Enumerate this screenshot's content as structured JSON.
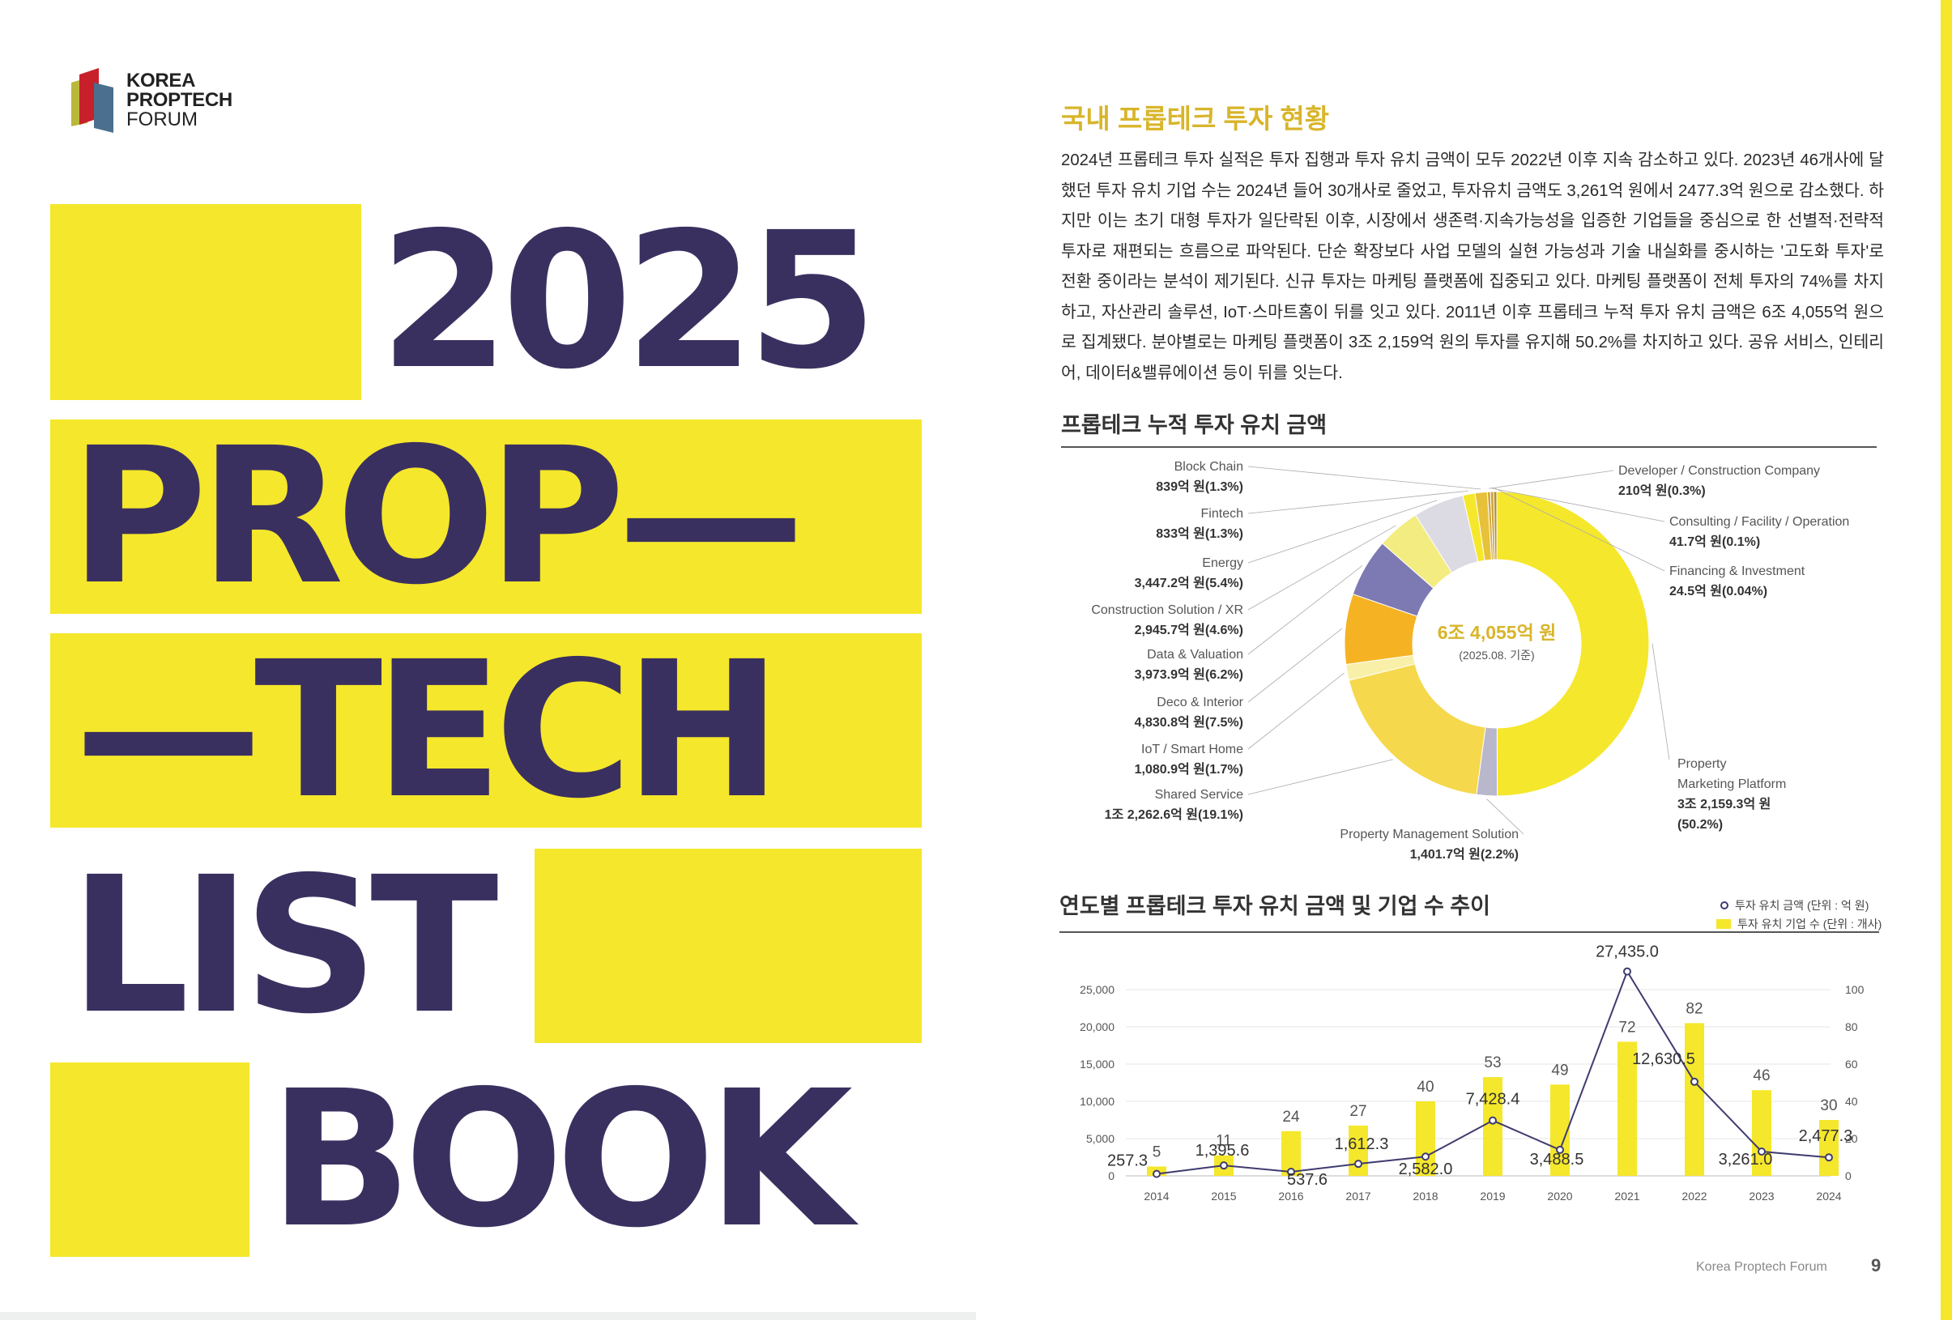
{
  "logo": {
    "line1": "KOREA",
    "line2": "PROPTECH",
    "line3": "FORUM"
  },
  "cover": {
    "word1": "2025",
    "word2": "PROP—",
    "word3": "—TECH",
    "word4": "LIST",
    "word5": "BOOK"
  },
  "colors": {
    "yellow": "#f5e72b",
    "navy": "#3a3060",
    "gold": "#d8b52a",
    "purple": "#7c79b3",
    "orange": "#f5b324",
    "grey": "#dcdae3"
  },
  "section": {
    "title": "국내 프롭테크 투자 현황",
    "body": "2024년 프롭테크 투자 실적은 투자 집행과 투자 유치 금액이 모두 2022년 이후 지속 감소하고 있다. 2023년 46개사에 달했던 투자 유치 기업 수는 2024년 들어 30개사로 줄었고, 투자유치 금액도 3,261억 원에서 2477.3억 원으로 감소했다. 하지만 이는 초기 대형 투자가 일단락된 이후, 시장에서 생존력·지속가능성을 입증한 기업들을 중심으로 한 선별적·전략적 투자로 재편되는 흐름으로 파악된다. 단순 확장보다 사업 모델의 실현 가능성과 기술 내실화를 중시하는 '고도화 투자'로 전환 중이라는 분석이 제기된다. 신규 투자는 마케팅 플랫폼에 집중되고 있다. 마케팅 플랫폼이 전체 투자의 74%를 차지하고, 자산관리 솔루션, IoT·스마트홈이 뒤를 잇고 있다. 2011년 이후 프롭테크 누적 투자 유치 금액은 6조 4,055억 원으로 집계됐다. 분야별로는 마케팅 플랫폼이 3조 2,159억 원의 투자를 유지해 50.2%를 차지하고 있다. 공유 서비스, 인테리어, 데이터&밸류에이션 등이 뒤를 잇는다."
  },
  "donut_title": "프롭테크 누적 투자 유치 금액",
  "bar_title": "연도별 프롭테크 투자 유치 금액 및 기업 수 추이",
  "legend": {
    "amount": "투자 유치 금액 (단위 : 억 원)",
    "count": "투자 유치 기업 수 (단위 : 개사)"
  },
  "footer": {
    "text": "Korea Proptech Forum",
    "page": "9"
  },
  "chart_data": [
    {
      "type": "pie",
      "title": "프롭테크 누적 투자 유치 금액",
      "center_label": "6조 4,055억 원",
      "center_sub": "(2025.08. 기준)",
      "slices": [
        {
          "name": "Property Marketing Platform",
          "value_text": "3조 2,159.3억 원",
          "pct_text": "(50.2%)",
          "percent": 50.2,
          "color": "#f5e72b"
        },
        {
          "name": "Property Management Solution",
          "value_text": "1,401.7억 원(2.2%)",
          "percent": 2.2,
          "color": "#b9b7cc"
        },
        {
          "name": "Shared Service",
          "value_text": "1조 2,262.6억 원(19.1%)",
          "percent": 19.1,
          "color": "#f5d84c"
        },
        {
          "name": "IoT / Smart Home",
          "value_text": "1,080.9억 원(1.7%)",
          "percent": 1.7,
          "color": "#f8f0a8"
        },
        {
          "name": "Deco & Interior",
          "value_text": "4,830.8억 원(7.5%)",
          "percent": 7.5,
          "color": "#f5b324"
        },
        {
          "name": "Data & Valuation",
          "value_text": "3,973.9억 원(6.2%)",
          "percent": 6.2,
          "color": "#7c79b3"
        },
        {
          "name": "Construction Solution / XR",
          "value_text": "2,945.7억 원(4.6%)",
          "percent": 4.6,
          "color": "#f3ec80"
        },
        {
          "name": "Energy",
          "value_text": "3,447.2억 원(5.4%)",
          "percent": 5.4,
          "color": "#dcdae3"
        },
        {
          "name": "Fintech",
          "value_text": "833억 원(1.3%)",
          "percent": 1.3,
          "color": "#f5e72b"
        },
        {
          "name": "Block Chain",
          "value_text": "839억 원(1.3%)",
          "percent": 1.3,
          "color": "#e8c13a"
        },
        {
          "name": "Developer / Construction Company",
          "value_text": "210억 원(0.3%)",
          "percent": 0.3,
          "color": "#d6a838"
        },
        {
          "name": "Consulting / Facility / Operation",
          "value_text": "41.7억 원(0.1%)",
          "percent": 0.1,
          "color": "#c7a23a"
        },
        {
          "name": "Financing & Investment",
          "value_text": "24.5억 원(0.04%)",
          "percent": 0.04,
          "color": "#b89030"
        }
      ]
    },
    {
      "type": "bar",
      "title": "연도별 프롭테크 투자 유치 금액 및 기업 수 추이",
      "categories": [
        "2014",
        "2015",
        "2016",
        "2017",
        "2018",
        "2019",
        "2020",
        "2021",
        "2022",
        "2023",
        "2024"
      ],
      "series": [
        {
          "name": "투자 유치 금액 (단위 : 억 원)",
          "kind": "line",
          "axis": "left",
          "values": [
            257.3,
            1395.6,
            537.6,
            1612.3,
            2582.0,
            7428.4,
            3488.5,
            27435.0,
            12630.5,
            3261.0,
            2477.3
          ],
          "labels": [
            "257.3",
            "1,395.6",
            "537.6",
            "1,612.3",
            "2,582.0",
            "7,428.4",
            "3,488.5",
            "27,435.0",
            "12,630.5",
            "3,261.0",
            "2,477.3"
          ]
        },
        {
          "name": "투자 유치 기업 수 (단위 : 개사)",
          "kind": "bar",
          "axis": "right",
          "values": [
            5,
            11,
            24,
            27,
            40,
            53,
            49,
            72,
            82,
            46,
            30
          ]
        }
      ],
      "ylim_left": [
        0,
        25000
      ],
      "yticks_left": [
        "0",
        "5,000",
        "10,000",
        "15,000",
        "20,000",
        "25,000"
      ],
      "ylim_right": [
        0,
        100
      ],
      "yticks_right": [
        "0",
        "20",
        "40",
        "60",
        "80",
        "100"
      ]
    }
  ]
}
